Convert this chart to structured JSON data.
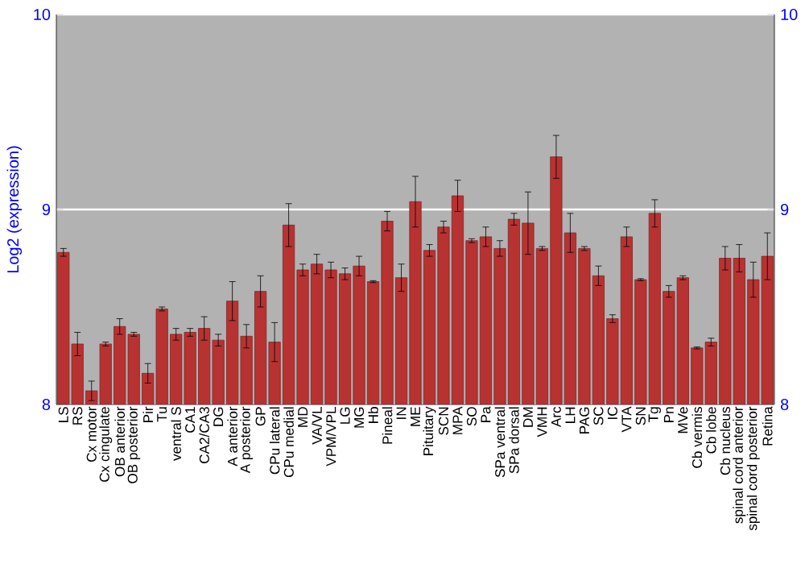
{
  "chart_data": {
    "type": "bar",
    "ylabel": "Log2 (expression)",
    "categories": [
      "LS",
      "RS",
      "Cx motor",
      "Cx cingulate",
      "OB anterior",
      "OB posterior",
      "Pir",
      "Tu",
      "ventral S",
      "CA1",
      "CA2/CA3",
      "DG",
      "A anterior",
      "A posterior",
      "GP",
      "CPu lateral",
      "CPu medial",
      "MD",
      "VA/VL",
      "VPM/VPL",
      "LG",
      "MG",
      "Hb",
      "Pineal",
      "IN",
      "ME",
      "Pituitary",
      "SCN",
      "MPA",
      "SO",
      "Pa",
      "SPa ventral",
      "SPa dorsal",
      "DM",
      "VMH",
      "Arc",
      "LH",
      "PAG",
      "SC",
      "IC",
      "VTA",
      "SN",
      "Tg",
      "Pn",
      "MVe",
      "Cb vermis",
      "Cb lobe",
      "Cb nucleus",
      "spinal cord anterior",
      "spinal cord posterior",
      "Retina"
    ],
    "values": [
      8.78,
      8.31,
      8.07,
      8.31,
      8.4,
      8.36,
      8.16,
      8.49,
      8.36,
      8.37,
      8.39,
      8.33,
      8.53,
      8.35,
      8.58,
      8.32,
      8.92,
      8.69,
      8.72,
      8.69,
      8.67,
      8.71,
      8.63,
      8.94,
      8.65,
      9.04,
      8.79,
      8.91,
      9.07,
      8.84,
      8.86,
      8.8,
      8.95,
      8.93,
      8.8,
      9.27,
      8.88,
      8.8,
      8.66,
      8.44,
      8.86,
      8.64,
      8.98,
      8.58,
      8.65,
      8.29,
      8.32,
      8.75,
      8.75,
      8.64,
      8.76
    ],
    "errors": [
      0.02,
      0.06,
      0.05,
      0.01,
      0.04,
      0.01,
      0.05,
      0.01,
      0.03,
      0.02,
      0.06,
      0.03,
      0.1,
      0.06,
      0.08,
      0.1,
      0.11,
      0.03,
      0.05,
      0.04,
      0.03,
      0.05,
      0.005,
      0.05,
      0.07,
      0.13,
      0.03,
      0.03,
      0.08,
      0.01,
      0.05,
      0.04,
      0.03,
      0.16,
      0.01,
      0.11,
      0.1,
      0.01,
      0.05,
      0.02,
      0.05,
      0.005,
      0.07,
      0.03,
      0.01,
      0.005,
      0.02,
      0.06,
      0.07,
      0.09,
      0.12
    ],
    "color": "#b83232",
    "ylim": [
      8,
      10
    ],
    "yticks": [
      8,
      9,
      10
    ],
    "y2lim": [
      8,
      10
    ],
    "y2ticks": [
      8,
      9,
      10
    ],
    "grid": "y"
  }
}
